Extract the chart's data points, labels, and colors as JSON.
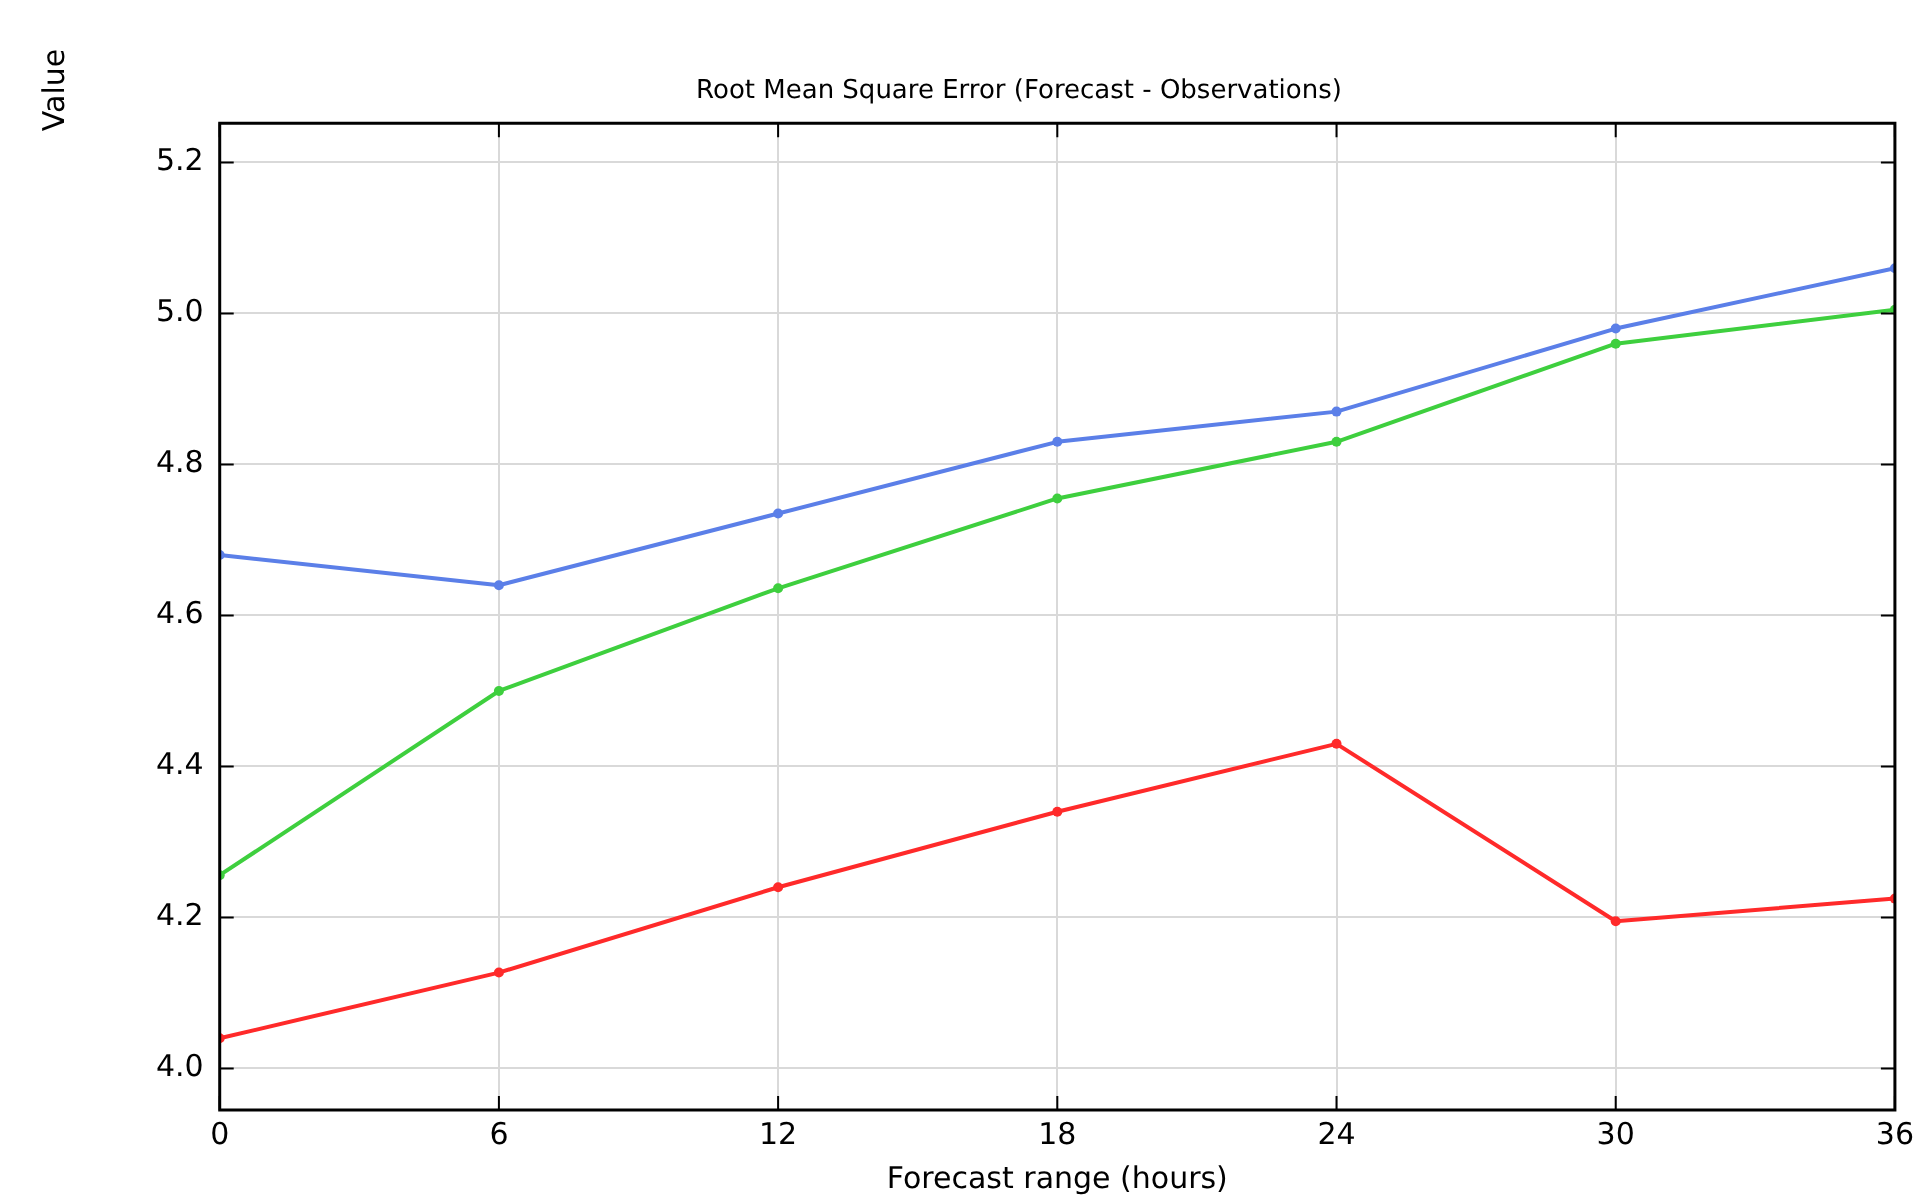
{
  "chart_data": {
    "type": "line",
    "title": "Root Mean Square Error (Forecast - Observations)",
    "xlabel": "Forecast range (hours)",
    "ylabel": "Value",
    "x": [
      0,
      6,
      12,
      18,
      24,
      30,
      36
    ],
    "series": [
      {
        "color": "#5b7fe8",
        "values": [
          4.68,
          4.64,
          4.735,
          4.83,
          4.87,
          4.98,
          5.06
        ]
      },
      {
        "color": "#3ecf3e",
        "values": [
          4.256,
          4.5,
          4.636,
          4.755,
          4.83,
          4.96,
          5.005
        ]
      },
      {
        "color": "#ff2a2a",
        "values": [
          4.04,
          4.127,
          4.24,
          4.34,
          4.43,
          4.195,
          4.225
        ]
      }
    ],
    "xlim": [
      0,
      36
    ],
    "xticks": [
      0,
      6,
      12,
      18,
      24,
      30,
      36
    ],
    "ylim": [
      3.945,
      5.252
    ],
    "yticks": [
      {
        "value": 4.0,
        "label": "4.0"
      },
      {
        "value": 4.2,
        "label": "4.2"
      },
      {
        "value": 4.4,
        "label": "4.4"
      },
      {
        "value": 4.6,
        "label": "4.6"
      },
      {
        "value": 4.8,
        "label": "4.8"
      },
      {
        "value": 5.0,
        "label": "5.0"
      },
      {
        "value": 5.2,
        "label": "5.2"
      }
    ],
    "grid": true,
    "marker": "circle",
    "line_style": "solid",
    "legend": false
  }
}
